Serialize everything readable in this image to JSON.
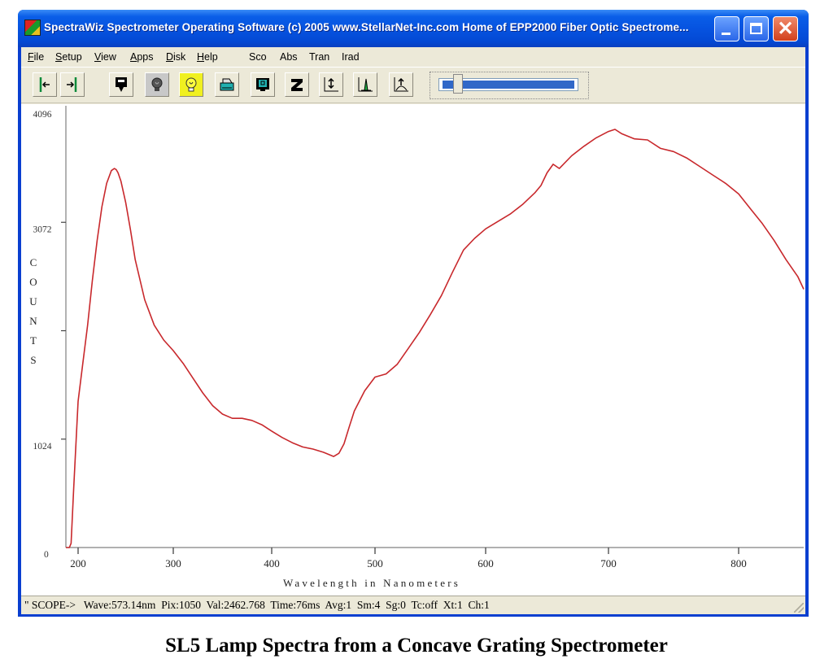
{
  "window": {
    "title": "SpectraWiz  Spectrometer Operating Software (c) 2005  www.StellarNet-Inc.com  Home of EPP2000 Fiber Optic Spectrome...",
    "controls": {
      "minimize": "minimize",
      "maximize": "maximize",
      "close": "close"
    }
  },
  "menubar": {
    "items": [
      {
        "label": "File",
        "accel": "F"
      },
      {
        "label": "Setup",
        "accel": "S"
      },
      {
        "label": "View",
        "accel": "V"
      },
      {
        "label": "Apps",
        "accel": "A"
      },
      {
        "label": "Disk",
        "accel": "D"
      },
      {
        "label": "Help",
        "accel": "H"
      }
    ],
    "modes": [
      "Sco",
      "Abs",
      "Tran",
      "Irad"
    ]
  },
  "toolbar": {
    "buttons": [
      {
        "name": "cursor-left",
        "icon": "cursor-left-icon"
      },
      {
        "name": "cursor-right",
        "icon": "cursor-right-icon"
      },
      {
        "name": "save-data",
        "icon": "download-icon"
      },
      {
        "name": "dark-reference",
        "icon": "lamp-off-icon"
      },
      {
        "name": "light-reference",
        "icon": "lamp-on-icon"
      },
      {
        "name": "print",
        "icon": "printer-icon"
      },
      {
        "name": "monitor",
        "icon": "monitor-icon"
      },
      {
        "name": "zoom",
        "icon": "z-icon"
      },
      {
        "name": "autoscale",
        "icon": "vertical-scale-icon"
      },
      {
        "name": "peak-find",
        "icon": "peak-icon"
      },
      {
        "name": "baseline",
        "icon": "baseline-icon"
      }
    ],
    "slider": {
      "position_pct": 12
    }
  },
  "chart_data": {
    "type": "line",
    "title": "",
    "xlabel": "Wavelength in Nanometers",
    "ylabel": "COUNTS",
    "xlim": [
      186,
      855
    ],
    "ylim": [
      0,
      4096
    ],
    "x_ticks": [
      200,
      300,
      400,
      500,
      600,
      700,
      800
    ],
    "y_ticks": [
      0,
      1024,
      2048,
      3072,
      4096
    ],
    "y_tick_labels": [
      "0",
      "1024",
      "",
      "3072",
      "4096"
    ],
    "grid": false,
    "legend": null,
    "series": [
      {
        "name": "SL5 lamp spectrum",
        "color": "#c8282c",
        "x": [
          186,
          190,
          192,
          195,
          200,
          205,
          210,
          215,
          220,
          225,
          230,
          235,
          238,
          240,
          242,
          245,
          250,
          255,
          260,
          270,
          280,
          290,
          300,
          310,
          320,
          330,
          340,
          350,
          360,
          370,
          380,
          390,
          400,
          410,
          420,
          430,
          440,
          450,
          455,
          460,
          465,
          470,
          475,
          480,
          490,
          500,
          510,
          520,
          530,
          540,
          550,
          560,
          570,
          580,
          590,
          600,
          610,
          620,
          630,
          640,
          645,
          650,
          655,
          660,
          670,
          680,
          690,
          700,
          705,
          710,
          720,
          730,
          740,
          750,
          760,
          770,
          780,
          790,
          800,
          810,
          820,
          830,
          840,
          850,
          855
        ],
        "values": [
          0,
          0,
          40,
          560,
          1380,
          1740,
          2100,
          2520,
          2900,
          3220,
          3440,
          3560,
          3580,
          3570,
          3540,
          3460,
          3260,
          3000,
          2720,
          2340,
          2100,
          1960,
          1860,
          1740,
          1600,
          1460,
          1340,
          1260,
          1220,
          1220,
          1200,
          1160,
          1100,
          1040,
          990,
          950,
          930,
          900,
          880,
          860,
          890,
          980,
          1140,
          1290,
          1480,
          1610,
          1640,
          1730,
          1880,
          2030,
          2200,
          2380,
          2600,
          2810,
          2920,
          3010,
          3080,
          3150,
          3240,
          3350,
          3420,
          3540,
          3620,
          3580,
          3700,
          3790,
          3870,
          3930,
          3950,
          3910,
          3860,
          3850,
          3770,
          3740,
          3680,
          3600,
          3520,
          3440,
          3340,
          3200,
          3060,
          2900,
          2720,
          2560,
          2440
        ]
      }
    ]
  },
  "status": {
    "mode": "\" SCOPE->",
    "wave": "Wave:573.14nm",
    "pix": "Pix:1050",
    "val": "Val:2462.768",
    "time": "Time:76ms",
    "avg": "Avg:1",
    "sm": "Sm:4",
    "sg": "Sg:0",
    "tc": "Tc:off",
    "xt": "Xt:1",
    "ch": "Ch:1"
  },
  "caption": "SL5 Lamp Spectra from a Concave Grating Spectrometer"
}
